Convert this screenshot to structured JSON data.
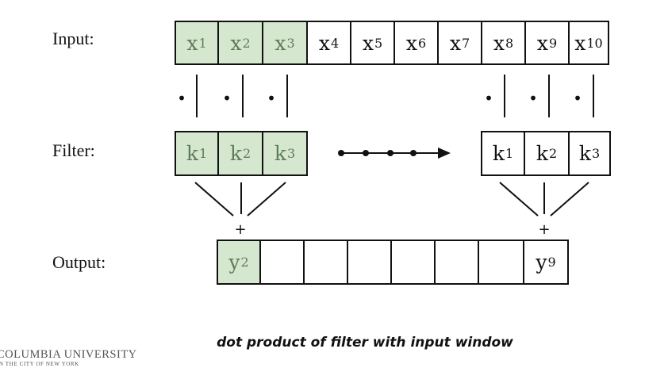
{
  "labels": {
    "input": "Input:",
    "filter": "Filter:",
    "output": "Output:"
  },
  "input_cells": [
    {
      "base": "x",
      "sub": "1",
      "highlight": true
    },
    {
      "base": "x",
      "sub": "2",
      "highlight": true
    },
    {
      "base": "x",
      "sub": "3",
      "highlight": true
    },
    {
      "base": "x",
      "sub": "4",
      "highlight": false
    },
    {
      "base": "x",
      "sub": "5",
      "highlight": false
    },
    {
      "base": "x",
      "sub": "6",
      "highlight": false
    },
    {
      "base": "x",
      "sub": "7",
      "highlight": false
    },
    {
      "base": "x",
      "sub": "8",
      "highlight": false
    },
    {
      "base": "x",
      "sub": "9",
      "highlight": false
    },
    {
      "base": "x",
      "sub": "10",
      "highlight": false
    }
  ],
  "filter_left": [
    {
      "base": "k",
      "sub": "1",
      "highlight": true
    },
    {
      "base": "k",
      "sub": "2",
      "highlight": true
    },
    {
      "base": "k",
      "sub": "3",
      "highlight": true
    }
  ],
  "filter_right": [
    {
      "base": "k",
      "sub": "1",
      "highlight": false
    },
    {
      "base": "k",
      "sub": "2",
      "highlight": false
    },
    {
      "base": "k",
      "sub": "3",
      "highlight": false
    }
  ],
  "output_cells": [
    {
      "base": "y",
      "sub": "2",
      "highlight": true
    },
    {
      "base": "",
      "sub": "",
      "highlight": false
    },
    {
      "base": "",
      "sub": "",
      "highlight": false
    },
    {
      "base": "",
      "sub": "",
      "highlight": false
    },
    {
      "base": "",
      "sub": "",
      "highlight": false
    },
    {
      "base": "",
      "sub": "",
      "highlight": false
    },
    {
      "base": "",
      "sub": "",
      "highlight": false
    },
    {
      "base": "y",
      "sub": "9",
      "highlight": false
    }
  ],
  "operators": {
    "dot": "•",
    "plus": "+"
  },
  "caption": "dot product of filter with input window",
  "logo": {
    "line1": "COLUMBIA UNIVERSITY",
    "line2": "IN THE CITY OF NEW YORK"
  },
  "colors": {
    "highlight_fill": "#d5e8cf",
    "highlight_text": "#5f7a5c",
    "stroke": "#111111"
  }
}
